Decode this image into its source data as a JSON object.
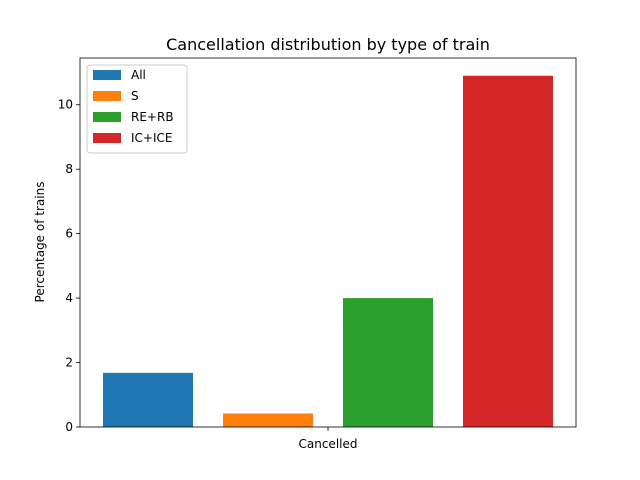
{
  "chart_data": {
    "type": "bar",
    "title": "Cancellation distribution by type of train",
    "xlabel": "",
    "ylabel": "Percentage of trains",
    "categories": [
      "Cancelled"
    ],
    "ylim": [
      0,
      11.45
    ],
    "yticks": [
      0,
      2,
      4,
      6,
      8,
      10
    ],
    "grid": false,
    "legend_position": "upper-left",
    "series": [
      {
        "name": "All",
        "values": [
          1.68
        ],
        "color": "#1f77b4"
      },
      {
        "name": "S",
        "values": [
          0.42
        ],
        "color": "#ff7f0e"
      },
      {
        "name": "RE+RB",
        "values": [
          4.0
        ],
        "color": "#2ca02c"
      },
      {
        "name": "IC+ICE",
        "values": [
          10.9
        ],
        "color": "#d62728"
      }
    ]
  }
}
